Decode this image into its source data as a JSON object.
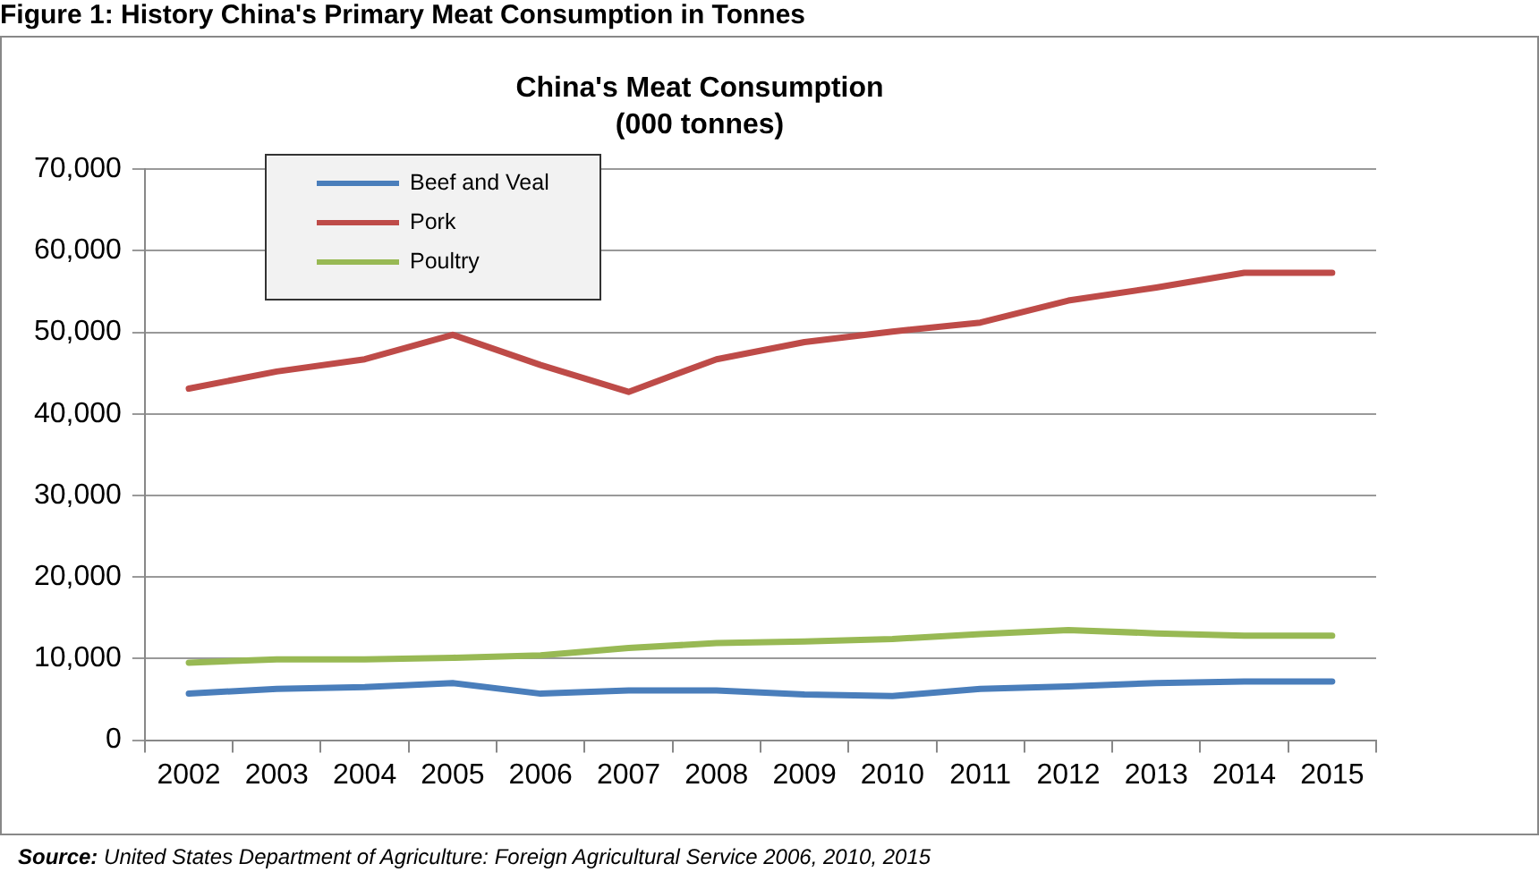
{
  "chart_data": {
    "type": "line",
    "title": "China's Meat Consumption\n(000 tonnes)",
    "categories": [
      "2002",
      "2003",
      "2004",
      "2005",
      "2006",
      "2007",
      "2008",
      "2009",
      "2010",
      "2011",
      "2012",
      "2013",
      "2014",
      "2015"
    ],
    "series": [
      {
        "name": "Beef and Veal",
        "color": "#4a7ebb",
        "values": [
          5700,
          6300,
          6500,
          7000,
          5700,
          6100,
          6100,
          5600,
          5400,
          6300,
          6600,
          7000,
          7200,
          7200
        ]
      },
      {
        "name": "Pork",
        "color": "#be4b48",
        "values": [
          43100,
          45200,
          46700,
          49700,
          46000,
          42700,
          46700,
          48800,
          50100,
          51200,
          53900,
          55500,
          57300,
          57300
        ]
      },
      {
        "name": "Poultry",
        "color": "#98b954",
        "values": [
          9500,
          9900,
          9900,
          10100,
          10400,
          11300,
          11900,
          12100,
          12400,
          13000,
          13500,
          13100,
          12800,
          12800
        ]
      }
    ],
    "ylim": [
      0,
      70000
    ],
    "yticks": [
      0,
      {
        "value": 10000,
        "label": "10,000"
      },
      {
        "value": 20000,
        "label": "20,000"
      },
      {
        "value": 30000,
        "label": "30,000"
      },
      {
        "value": 40000,
        "label": "40,000"
      },
      {
        "value": 50000,
        "label": "50,000"
      },
      {
        "value": 60000,
        "label": "60,000"
      },
      {
        "value": 70000,
        "label": "70,000"
      }
    ],
    "grid": "y",
    "legend": "top left",
    "marker": "none",
    "line_style": "solid",
    "annotations": [
      "Figure 1: History China's Primary Meat Consumption in Tonnes",
      "Source: United States Department of Agriculture: Foreign Agricultural Service 2006, 2010, 2015"
    ]
  }
}
